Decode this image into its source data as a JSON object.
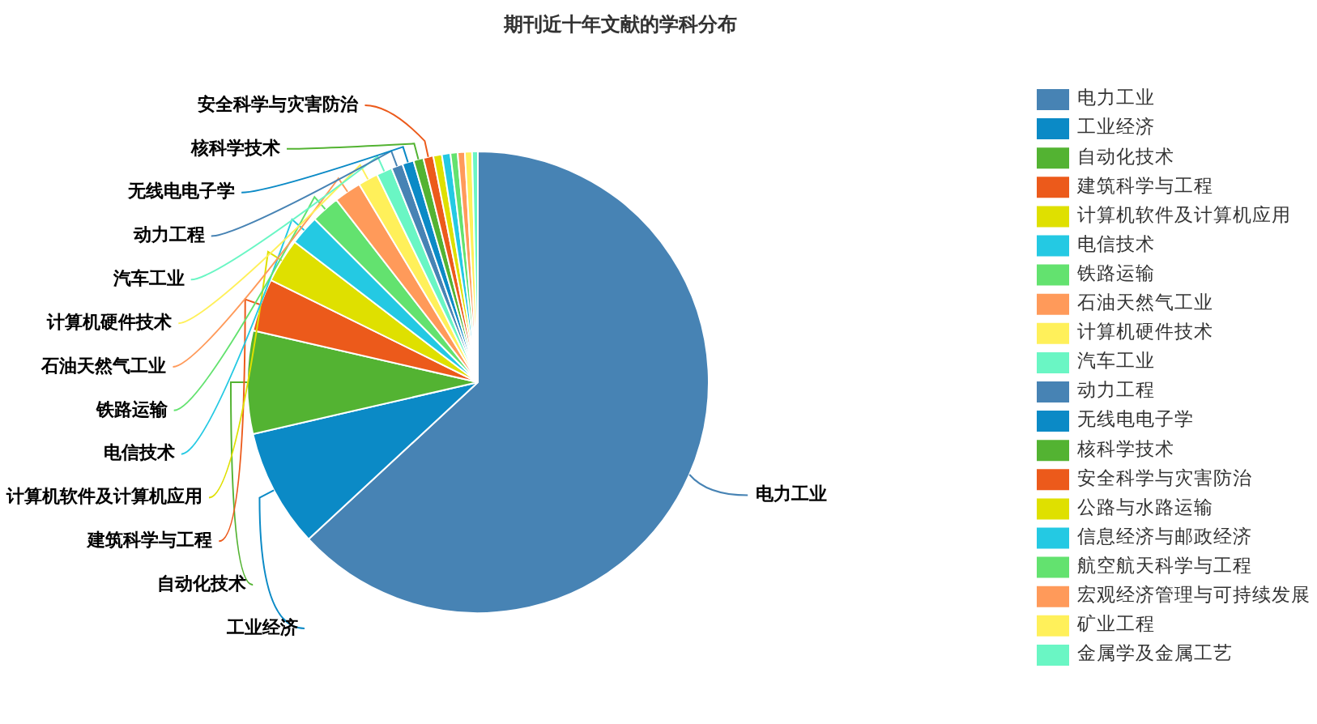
{
  "chart_data": {
    "type": "pie",
    "title": "期刊近十年文献的学科分布",
    "categories": [
      "电力工业",
      "工业经济",
      "自动化技术",
      "建筑科学与工程",
      "计算机软件及计算机应用",
      "电信技术",
      "铁路运输",
      "石油天然气工业",
      "计算机硬件技术",
      "汽车工业",
      "动力工程",
      "无线电电子学",
      "核科学技术",
      "安全科学与灾害防治",
      "公路与水路运输",
      "信息经济与邮政经济",
      "航空航天科学与工程",
      "宏观经济管理与可持续发展",
      "矿业工程",
      "金属学及金属工艺"
    ],
    "values": [
      63.1,
      8.3,
      7.2,
      3.7,
      3.1,
      2.1,
      2.0,
      1.9,
      1.4,
      1.1,
      0.8,
      0.8,
      0.7,
      0.7,
      0.6,
      0.6,
      0.5,
      0.5,
      0.5,
      0.4
    ],
    "colors": [
      "#4783b4",
      "#0b8ac6",
      "#53b332",
      "#ec5a1b",
      "#dfe000",
      "#24c9e3",
      "#63e26f",
      "#ff9a5a",
      "#fff05a",
      "#6af6c4",
      "#4783b4",
      "#0b8ac6",
      "#53b332",
      "#ec5a1b",
      "#dfe000",
      "#24c9e3",
      "#63e26f",
      "#ff9a5a",
      "#fff05a",
      "#6af6c4"
    ],
    "legend": "right"
  }
}
